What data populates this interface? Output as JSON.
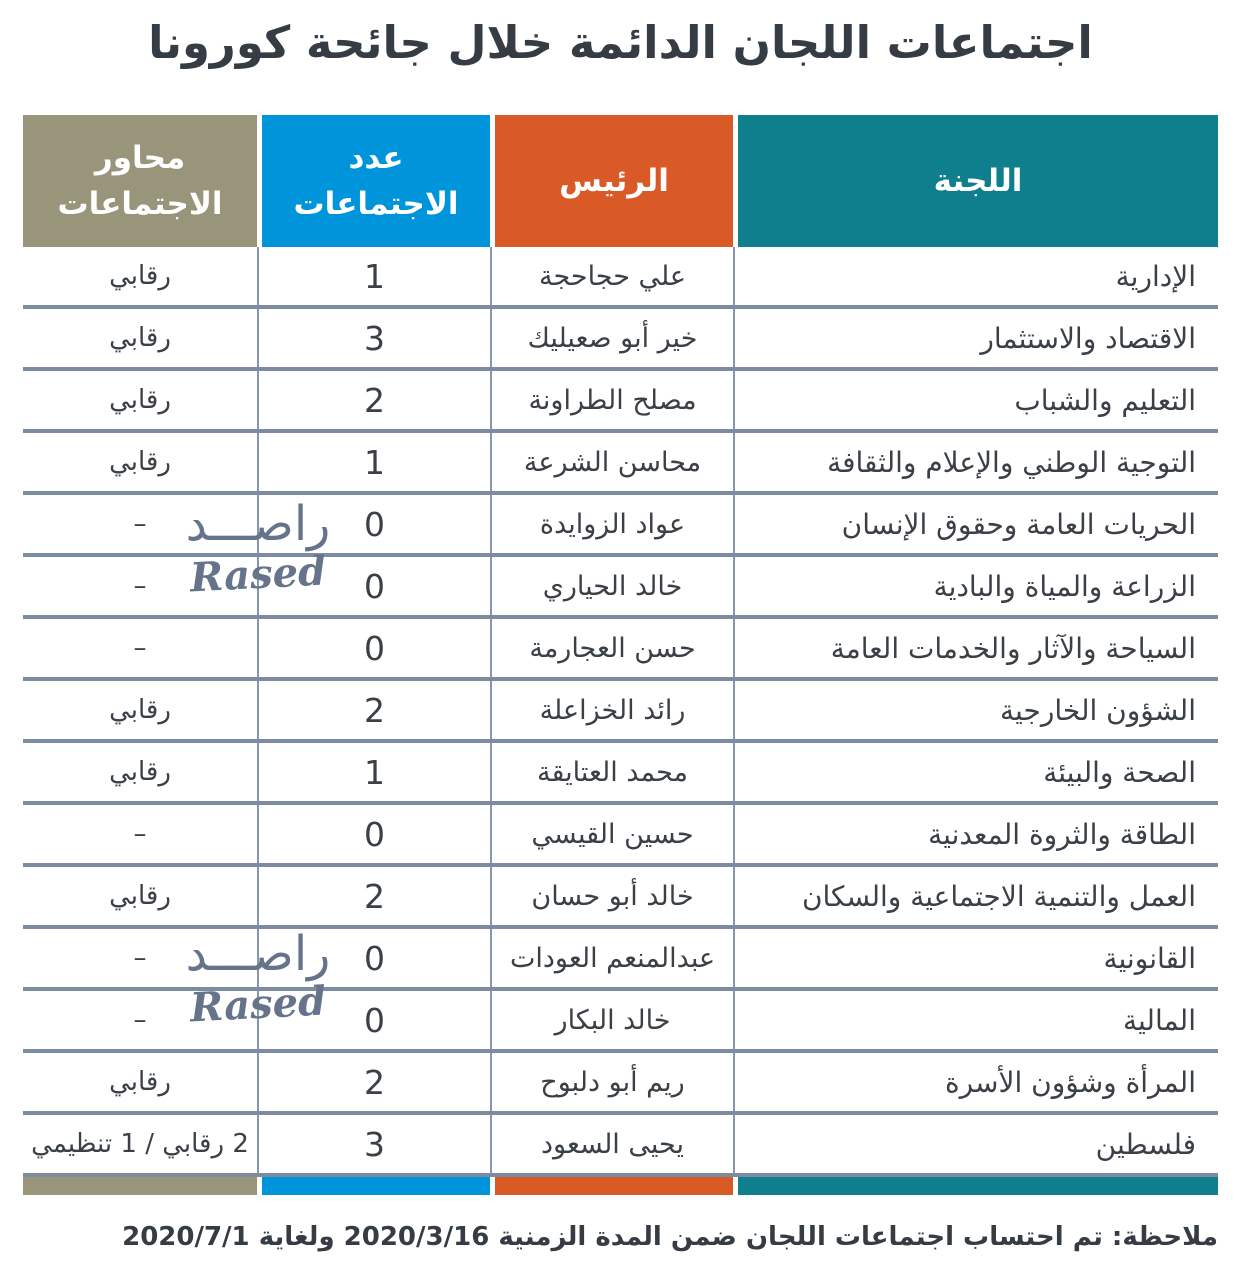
{
  "chart_data": {
    "type": "table",
    "title": "اجتماعات اللجان الدائمة خلال جائحة كورونا",
    "columns": [
      {
        "label": "اللجنة",
        "color": "#0F7F8D"
      },
      {
        "label": "الرئيس",
        "color": "#DA5A27"
      },
      {
        "label": "عدد الاجتماعات",
        "color": "#0095DA"
      },
      {
        "label": "محاور الاجتماعات",
        "color": "#98957B"
      }
    ],
    "column_fields": [
      "committee",
      "chairman",
      "meetings_count",
      "meeting_type"
    ],
    "rows": [
      [
        "الإدارية",
        "علي حجاحجة",
        "1",
        "رقابي"
      ],
      [
        "الاقتصاد والاستثمار",
        "خير أبو صعيليك",
        "3",
        "رقابي"
      ],
      [
        "التعليم والشباب",
        "مصلح الطراونة",
        "2",
        "رقابي"
      ],
      [
        "التوجية الوطني والإعلام والثقافة",
        "محاسن الشرعة",
        "1",
        "رقابي"
      ],
      [
        "الحريات العامة وحقوق الإنسان",
        "عواد الزوايدة",
        "0",
        "–"
      ],
      [
        "الزراعة والمياة والبادية",
        "خالد الحياري",
        "0",
        "–"
      ],
      [
        "السياحة والآثار والخدمات العامة",
        "حسن العجارمة",
        "0",
        "–"
      ],
      [
        "الشؤون الخارجية",
        "رائد الخزاعلة",
        "2",
        "رقابي"
      ],
      [
        "الصحة والبيئة",
        "محمد العتايقة",
        "1",
        "رقابي"
      ],
      [
        "الطاقة والثروة المعدنية",
        "حسين القيسي",
        "0",
        "–"
      ],
      [
        "العمل والتنمية الاجتماعية والسكان",
        "خالد أبو حسان",
        "2",
        "رقابي"
      ],
      [
        "القانونية",
        "عبدالمنعم العودات",
        "0",
        "–"
      ],
      [
        "المالية",
        "خالد البكار",
        "0",
        "–"
      ],
      [
        "المرأة وشؤون الأسرة",
        "ريم أبو دلبوح",
        "2",
        "رقابي"
      ],
      [
        "فلسطين",
        "يحيى السعود",
        "3",
        "2 رقابي / 1 تنظيمي"
      ]
    ],
    "note": "ملاحظة: تم احتساب اجتماعات اللجان ضمن المدة الزمنية 2020/3/16 ولغاية 2020/7/1",
    "watermark": {
      "arabic": "راصـــد",
      "latin": "Rased"
    },
    "layout": {
      "separator_color": "#7D8CA0",
      "vertical_line_color": "#8796AA",
      "text_color": "#3A4046",
      "grid": "on",
      "direction": "rtl"
    }
  }
}
